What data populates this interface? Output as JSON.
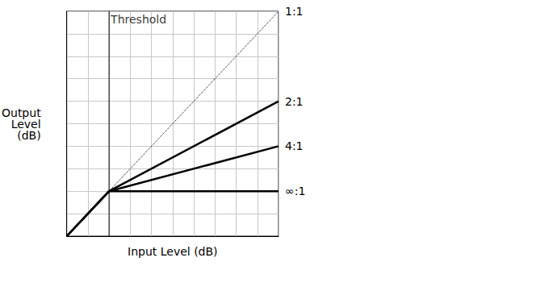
{
  "chart_data": {
    "type": "line",
    "x_label": "Input Level (dB)",
    "y_label": "Output\nLevel\n(dB)",
    "xlim": [
      0,
      10
    ],
    "ylim": [
      0,
      10
    ],
    "xticks": [
      0,
      1,
      2,
      3,
      4,
      5,
      6,
      7,
      8,
      9,
      10
    ],
    "yticks": [
      0,
      1,
      2,
      3,
      4,
      5,
      6,
      7,
      8,
      9,
      10
    ],
    "grid": true,
    "tick_labels": false,
    "annotations": [
      {
        "text": "Threshold",
        "x": 2
      }
    ],
    "series": [
      {
        "name": "1:1",
        "color": "#000000",
        "line_style": "dotted",
        "x": [
          2,
          10
        ],
        "values": [
          2,
          10
        ]
      },
      {
        "name": "2:1",
        "color": "#000000",
        "line_style": "solid",
        "x": [
          0,
          2,
          10
        ],
        "values": [
          0,
          2,
          6
        ]
      },
      {
        "name": "4:1",
        "color": "#000000",
        "line_style": "solid",
        "x": [
          0,
          2,
          10
        ],
        "values": [
          0,
          2,
          4
        ]
      },
      {
        "name": "∞:1",
        "color": "#000000",
        "line_style": "solid",
        "x": [
          0,
          2,
          10
        ],
        "values": [
          0,
          2,
          2
        ]
      }
    ]
  }
}
